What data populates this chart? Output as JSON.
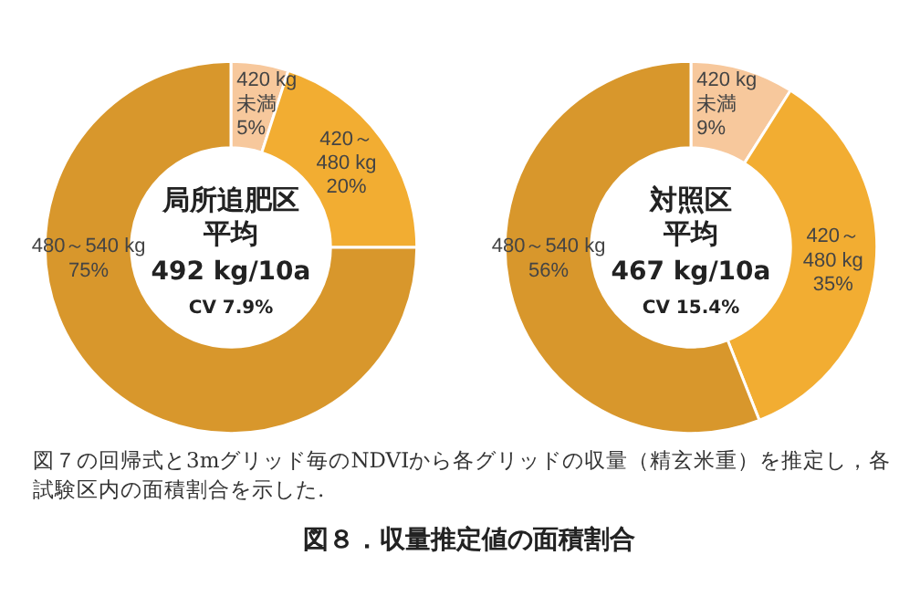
{
  "chart_data": [
    {
      "type": "donut",
      "categories": [
        "420 kg\n未満",
        "420～\n480 kg",
        "480～540 kg"
      ],
      "values": [
        5,
        20,
        75
      ],
      "value_labels": [
        "5%",
        "20%",
        "75%"
      ],
      "colors": [
        "#f7c89c",
        "#f2ad32",
        "#d8972c"
      ],
      "annotations": [
        "局所追肥区",
        "平均",
        "492 kg/10a",
        "CV 7.9%"
      ]
    },
    {
      "type": "donut",
      "categories": [
        "420 kg\n未満",
        "420～\n480 kg",
        "480～540 kg"
      ],
      "values": [
        9,
        35,
        56
      ],
      "value_labels": [
        "9%",
        "35%",
        "56%"
      ],
      "colors": [
        "#f7c89c",
        "#f2ad32",
        "#d8972c"
      ],
      "annotations": [
        "対照区",
        "平均",
        "467 kg/10a",
        "CV 15.4%"
      ]
    },
    {
      "type": "other",
      "annotations": [
        "図７の回帰式と3mグリッド毎のNDVIから各グリッドの収量（精玄米重）を推定し，各試験区内の面積割合を示した.",
        "図８．収量推定値の面積割合"
      ]
    }
  ]
}
